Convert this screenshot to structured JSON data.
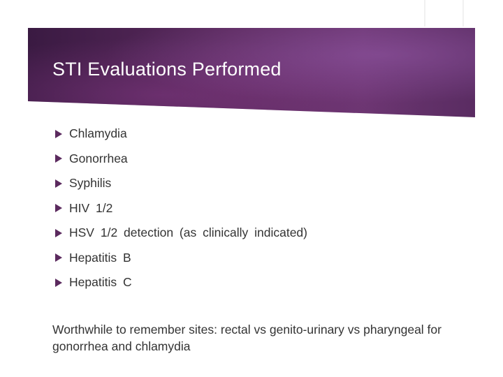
{
  "slide": {
    "title": "STI Evaluations Performed",
    "bullets": [
      "Chlamydia",
      "Gonorrhea",
      "Syphilis",
      "HIV 1/2",
      "HSV 1/2 detection (as clinically indicated)",
      "Hepatitis B",
      "Hepatitis C"
    ],
    "note": "Worthwhile to remember sites: rectal vs genito-urinary vs pharyngeal for gonorrhea and chlamydia"
  },
  "colors": {
    "banner": "#5b2a5e",
    "bullet_icon": "#5b2a5e",
    "title_text": "#ffffff",
    "body_text": "#333333"
  },
  "icons": {
    "bullet": "triangle-bullet-icon"
  }
}
